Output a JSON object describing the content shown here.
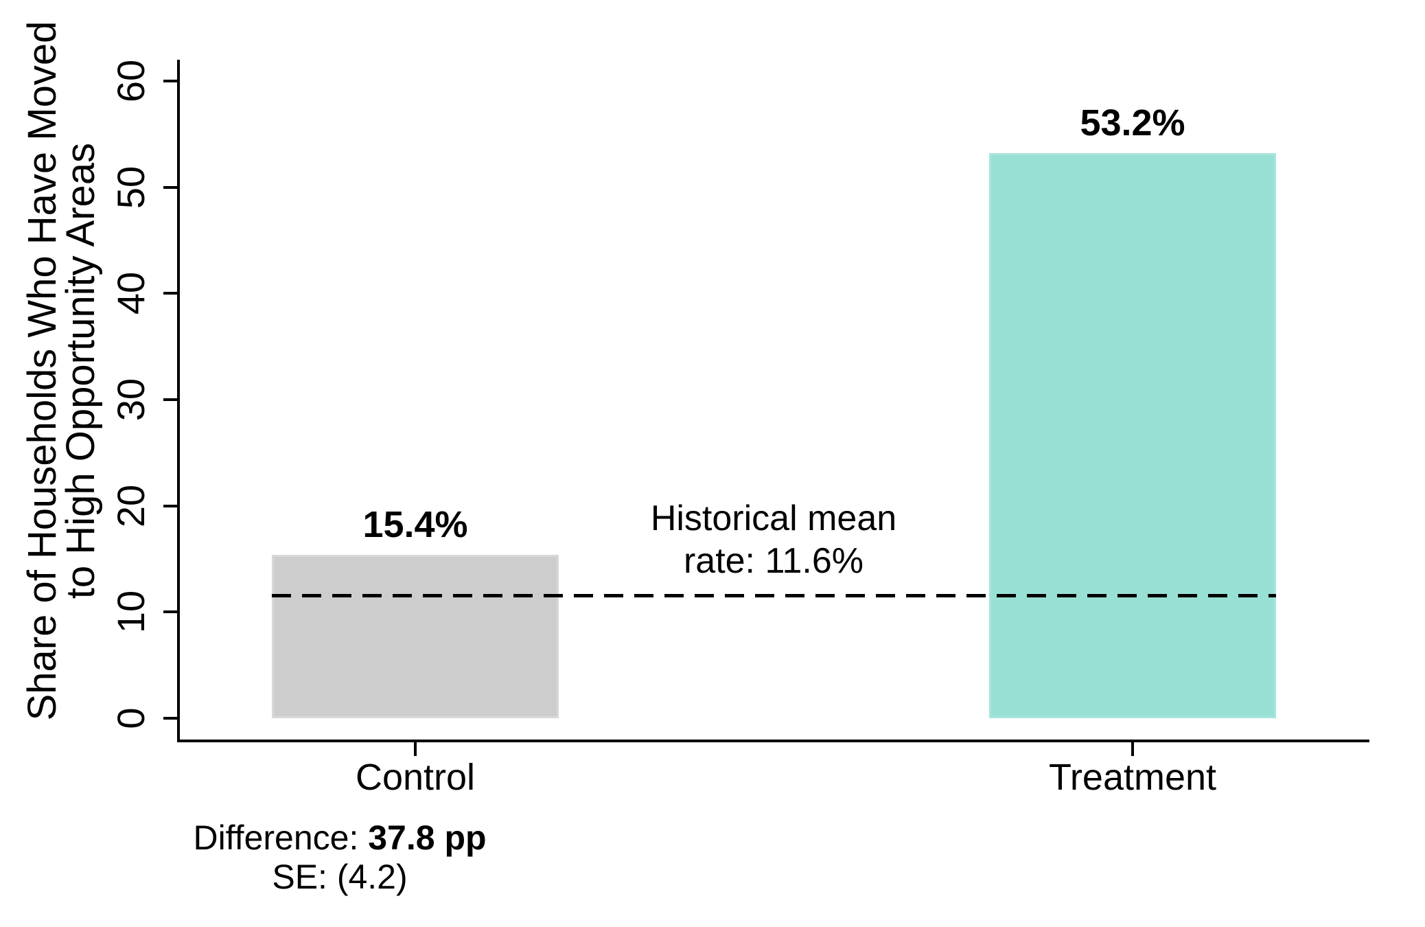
{
  "figure": {
    "background_color": "#ffffff",
    "axis_color": "#000000"
  },
  "chart_data": {
    "type": "bar",
    "title": "",
    "xlabel": "",
    "ylabel_line1": "Share of Households Who Have Moved",
    "ylabel_line2": "to High Opportunity Areas",
    "categories": [
      "Control",
      "Treatment"
    ],
    "values": [
      15.4,
      53.2
    ],
    "value_labels": [
      "15.4%",
      "53.2%"
    ],
    "bar_colors": [
      "#cdcdcd",
      "#99e0d4"
    ],
    "bar_border_colors": [
      "#d8d8d8",
      "#a8e5db"
    ],
    "ylim": [
      0,
      60
    ],
    "y_ticks": [
      0,
      10,
      20,
      30,
      40,
      50,
      60
    ],
    "y_tick_labels": [
      "0",
      "10",
      "20",
      "30",
      "40",
      "50",
      "60"
    ],
    "grid": "off",
    "legend": "none",
    "reference_line": {
      "value": 11.6,
      "style": "dashed",
      "color": "#000000",
      "label_line1": "Historical mean",
      "label_line2": "rate: 11.6%"
    },
    "note": {
      "prefix": "Difference: ",
      "diff_value": "37.8 pp",
      "se_line": "SE: (4.2)"
    }
  }
}
